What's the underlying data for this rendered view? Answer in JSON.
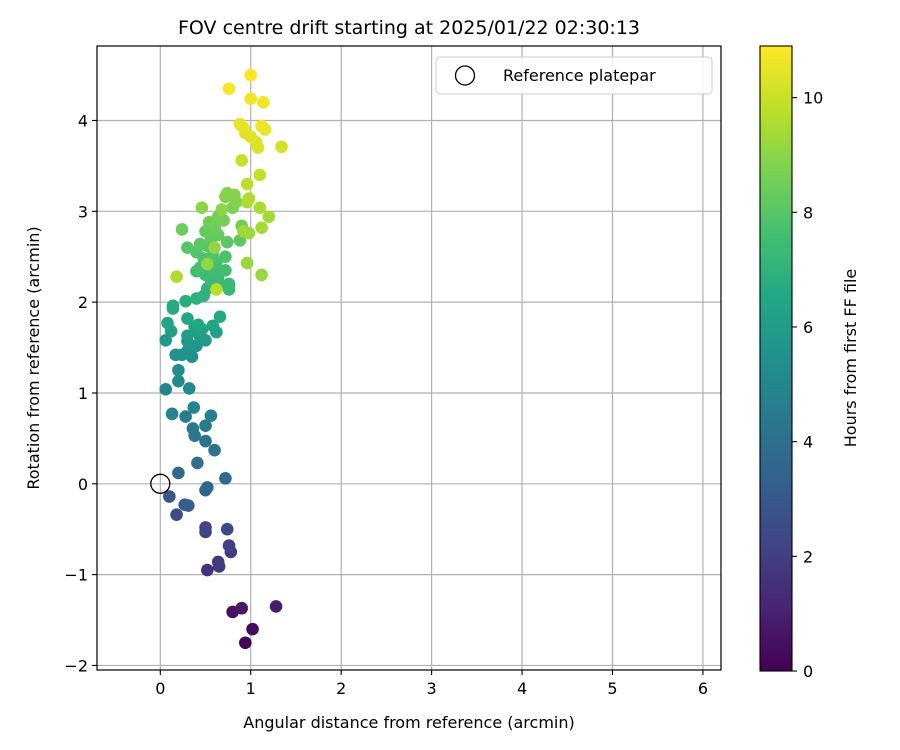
{
  "chart_data": {
    "type": "scatter",
    "title": "FOV centre drift starting at 2025/01/22 02:30:13",
    "xlabel": "Angular distance from reference (arcmin)",
    "ylabel": "Rotation from reference (arcmin)",
    "xlim": [
      -0.7,
      6.2
    ],
    "ylim": [
      -2.05,
      4.82
    ],
    "xticks": [
      0,
      1,
      2,
      3,
      4,
      5,
      6
    ],
    "yticks": [
      -2,
      -1,
      0,
      1,
      2,
      3,
      4
    ],
    "xtick_labels": [
      "0",
      "1",
      "2",
      "3",
      "4",
      "5",
      "6"
    ],
    "ytick_labels": [
      "−2",
      "−1",
      "0",
      "1",
      "2",
      "3",
      "4"
    ],
    "grid": true,
    "legend": {
      "placement": "top-right",
      "entries": [
        {
          "label": "Reference platepar",
          "marker": "open-circle"
        }
      ]
    },
    "reference_point": {
      "x": 0,
      "y": 0
    },
    "colorbar": {
      "label": "Hours from first FF file",
      "colormap": "viridis",
      "range": [
        0,
        10.9
      ],
      "ticks": [
        0,
        2,
        4,
        6,
        8,
        10
      ],
      "tick_labels": [
        "0",
        "2",
        "4",
        "6",
        "8",
        "10"
      ]
    },
    "points": [
      {
        "x": 0.94,
        "y": -1.75,
        "hours": 0.1
      },
      {
        "x": 1.02,
        "y": -1.6,
        "hours": 0.3
      },
      {
        "x": 0.8,
        "y": -1.41,
        "hours": 0.5
      },
      {
        "x": 0.9,
        "y": -1.37,
        "hours": 0.7
      },
      {
        "x": 1.28,
        "y": -1.35,
        "hours": 0.9
      },
      {
        "x": 0.52,
        "y": -0.95,
        "hours": 1.6
      },
      {
        "x": 0.65,
        "y": -0.91,
        "hours": 1.7
      },
      {
        "x": 0.64,
        "y": -0.86,
        "hours": 1.8
      },
      {
        "x": 0.78,
        "y": -0.75,
        "hours": 1.9
      },
      {
        "x": 0.76,
        "y": -0.68,
        "hours": 2.0
      },
      {
        "x": 0.5,
        "y": -0.53,
        "hours": 2.2
      },
      {
        "x": 0.5,
        "y": -0.48,
        "hours": 2.3
      },
      {
        "x": 0.74,
        "y": -0.5,
        "hours": 2.4
      },
      {
        "x": 0.18,
        "y": -0.34,
        "hours": 2.5
      },
      {
        "x": 0.1,
        "y": -0.14,
        "hours": 3.0
      },
      {
        "x": 0.27,
        "y": -0.23,
        "hours": 3.2
      },
      {
        "x": 0.31,
        "y": -0.24,
        "hours": 3.3
      },
      {
        "x": 0.5,
        "y": -0.07,
        "hours": 3.5
      },
      {
        "x": 0.52,
        "y": -0.04,
        "hours": 3.6
      },
      {
        "x": 0.2,
        "y": 0.12,
        "hours": 3.8
      },
      {
        "x": 0.72,
        "y": 0.06,
        "hours": 3.9
      },
      {
        "x": 0.41,
        "y": 0.23,
        "hours": 4.0
      },
      {
        "x": 0.6,
        "y": 0.37,
        "hours": 4.1
      },
      {
        "x": 0.5,
        "y": 0.47,
        "hours": 4.2
      },
      {
        "x": 0.38,
        "y": 0.53,
        "hours": 4.3
      },
      {
        "x": 0.36,
        "y": 0.61,
        "hours": 4.4
      },
      {
        "x": 0.5,
        "y": 0.64,
        "hours": 4.5
      },
      {
        "x": 0.28,
        "y": 0.74,
        "hours": 4.6
      },
      {
        "x": 0.56,
        "y": 0.75,
        "hours": 4.7
      },
      {
        "x": 0.13,
        "y": 0.77,
        "hours": 4.8
      },
      {
        "x": 0.37,
        "y": 0.84,
        "hours": 4.9
      },
      {
        "x": 0.06,
        "y": 1.04,
        "hours": 5.0
      },
      {
        "x": 0.32,
        "y": 1.05,
        "hours": 5.1
      },
      {
        "x": 0.2,
        "y": 1.13,
        "hours": 5.2
      },
      {
        "x": 0.2,
        "y": 1.25,
        "hours": 5.3
      },
      {
        "x": 0.35,
        "y": 1.4,
        "hours": 5.4
      },
      {
        "x": 0.17,
        "y": 1.42,
        "hours": 5.5
      },
      {
        "x": 0.3,
        "y": 1.46,
        "hours": 5.6
      },
      {
        "x": 0.24,
        "y": 1.42,
        "hours": 5.6
      },
      {
        "x": 0.4,
        "y": 1.52,
        "hours": 5.7
      },
      {
        "x": 0.3,
        "y": 1.57,
        "hours": 5.8
      },
      {
        "x": 0.06,
        "y": 1.58,
        "hours": 5.8
      },
      {
        "x": 0.44,
        "y": 1.62,
        "hours": 5.9
      },
      {
        "x": 0.5,
        "y": 1.58,
        "hours": 6.0
      },
      {
        "x": 0.3,
        "y": 1.63,
        "hours": 6.0
      },
      {
        "x": 0.42,
        "y": 1.67,
        "hours": 6.1
      },
      {
        "x": 0.62,
        "y": 1.67,
        "hours": 6.2
      },
      {
        "x": 0.12,
        "y": 1.68,
        "hours": 6.2
      },
      {
        "x": 0.46,
        "y": 1.7,
        "hours": 6.3
      },
      {
        "x": 0.38,
        "y": 1.73,
        "hours": 6.3
      },
      {
        "x": 0.58,
        "y": 1.74,
        "hours": 6.4
      },
      {
        "x": 0.08,
        "y": 1.77,
        "hours": 6.4
      },
      {
        "x": 0.42,
        "y": 1.75,
        "hours": 6.5
      },
      {
        "x": 0.3,
        "y": 1.82,
        "hours": 6.5
      },
      {
        "x": 0.66,
        "y": 1.84,
        "hours": 6.6
      },
      {
        "x": 0.14,
        "y": 1.93,
        "hours": 6.6
      },
      {
        "x": 0.14,
        "y": 1.96,
        "hours": 6.7
      },
      {
        "x": 0.28,
        "y": 2.01,
        "hours": 6.8
      },
      {
        "x": 0.4,
        "y": 2.04,
        "hours": 6.9
      },
      {
        "x": 0.48,
        "y": 2.07,
        "hours": 7.0
      },
      {
        "x": 0.52,
        "y": 2.15,
        "hours": 7.0
      },
      {
        "x": 0.6,
        "y": 2.18,
        "hours": 7.1
      },
      {
        "x": 0.66,
        "y": 2.2,
        "hours": 7.2
      },
      {
        "x": 0.76,
        "y": 2.14,
        "hours": 7.2
      },
      {
        "x": 0.76,
        "y": 2.2,
        "hours": 7.3
      },
      {
        "x": 0.56,
        "y": 2.24,
        "hours": 7.3
      },
      {
        "x": 0.64,
        "y": 2.28,
        "hours": 7.4
      },
      {
        "x": 0.5,
        "y": 2.3,
        "hours": 7.4
      },
      {
        "x": 0.6,
        "y": 2.34,
        "hours": 7.5
      },
      {
        "x": 0.4,
        "y": 2.34,
        "hours": 7.5
      },
      {
        "x": 0.72,
        "y": 2.35,
        "hours": 7.6
      },
      {
        "x": 0.44,
        "y": 2.38,
        "hours": 7.6
      },
      {
        "x": 0.54,
        "y": 2.41,
        "hours": 7.7
      },
      {
        "x": 0.62,
        "y": 2.44,
        "hours": 7.7
      },
      {
        "x": 0.48,
        "y": 2.48,
        "hours": 7.8
      },
      {
        "x": 0.72,
        "y": 2.5,
        "hours": 7.8
      },
      {
        "x": 0.58,
        "y": 2.52,
        "hours": 7.9
      },
      {
        "x": 0.4,
        "y": 2.55,
        "hours": 7.9
      },
      {
        "x": 0.3,
        "y": 2.6,
        "hours": 8.0
      },
      {
        "x": 0.52,
        "y": 2.62,
        "hours": 8.0
      },
      {
        "x": 0.44,
        "y": 2.64,
        "hours": 8.1
      },
      {
        "x": 0.74,
        "y": 2.66,
        "hours": 8.1
      },
      {
        "x": 0.88,
        "y": 2.68,
        "hours": 8.2
      },
      {
        "x": 0.56,
        "y": 2.7,
        "hours": 8.2
      },
      {
        "x": 0.64,
        "y": 2.74,
        "hours": 8.3
      },
      {
        "x": 0.5,
        "y": 2.78,
        "hours": 8.3
      },
      {
        "x": 0.24,
        "y": 2.8,
        "hours": 8.4
      },
      {
        "x": 0.6,
        "y": 2.82,
        "hours": 8.4
      },
      {
        "x": 0.9,
        "y": 2.84,
        "hours": 8.5
      },
      {
        "x": 0.54,
        "y": 2.88,
        "hours": 8.5
      },
      {
        "x": 0.7,
        "y": 2.9,
        "hours": 8.6
      },
      {
        "x": 0.64,
        "y": 2.94,
        "hours": 8.6
      },
      {
        "x": 0.8,
        "y": 3.04,
        "hours": 8.7
      },
      {
        "x": 0.84,
        "y": 3.1,
        "hours": 8.8
      },
      {
        "x": 0.72,
        "y": 3.16,
        "hours": 8.8
      },
      {
        "x": 0.82,
        "y": 3.18,
        "hours": 8.9
      },
      {
        "x": 0.74,
        "y": 3.2,
        "hours": 8.9
      },
      {
        "x": 0.68,
        "y": 3.02,
        "hours": 9.0
      },
      {
        "x": 0.46,
        "y": 3.04,
        "hours": 9.0
      },
      {
        "x": 0.6,
        "y": 2.6,
        "hours": 9.1
      },
      {
        "x": 0.52,
        "y": 2.42,
        "hours": 9.1
      },
      {
        "x": 0.96,
        "y": 2.43,
        "hours": 9.2
      },
      {
        "x": 1.12,
        "y": 2.3,
        "hours": 9.2
      },
      {
        "x": 0.92,
        "y": 2.78,
        "hours": 9.3
      },
      {
        "x": 0.98,
        "y": 2.76,
        "hours": 9.3
      },
      {
        "x": 1.12,
        "y": 2.82,
        "hours": 9.4
      },
      {
        "x": 1.2,
        "y": 2.94,
        "hours": 9.4
      },
      {
        "x": 1.1,
        "y": 3.04,
        "hours": 9.5
      },
      {
        "x": 0.96,
        "y": 3.1,
        "hours": 9.5
      },
      {
        "x": 0.98,
        "y": 3.14,
        "hours": 9.6
      },
      {
        "x": 0.18,
        "y": 2.28,
        "hours": 9.6
      },
      {
        "x": 0.62,
        "y": 2.14,
        "hours": 9.7
      },
      {
        "x": 0.96,
        "y": 3.3,
        "hours": 9.8
      },
      {
        "x": 1.1,
        "y": 3.4,
        "hours": 9.9
      },
      {
        "x": 0.9,
        "y": 3.56,
        "hours": 10.0
      },
      {
        "x": 1.34,
        "y": 3.71,
        "hours": 10.2
      },
      {
        "x": 1.08,
        "y": 3.7,
        "hours": 10.3
      },
      {
        "x": 1.06,
        "y": 3.76,
        "hours": 10.3
      },
      {
        "x": 1.0,
        "y": 3.82,
        "hours": 10.4
      },
      {
        "x": 0.94,
        "y": 3.86,
        "hours": 10.4
      },
      {
        "x": 0.88,
        "y": 3.96,
        "hours": 10.5
      },
      {
        "x": 0.92,
        "y": 3.92,
        "hours": 10.5
      },
      {
        "x": 1.16,
        "y": 3.9,
        "hours": 10.6
      },
      {
        "x": 1.12,
        "y": 3.94,
        "hours": 10.6
      },
      {
        "x": 1.0,
        "y": 4.24,
        "hours": 10.7
      },
      {
        "x": 1.14,
        "y": 4.2,
        "hours": 10.7
      },
      {
        "x": 0.76,
        "y": 4.35,
        "hours": 10.8
      },
      {
        "x": 1.0,
        "y": 4.5,
        "hours": 10.9
      }
    ]
  }
}
